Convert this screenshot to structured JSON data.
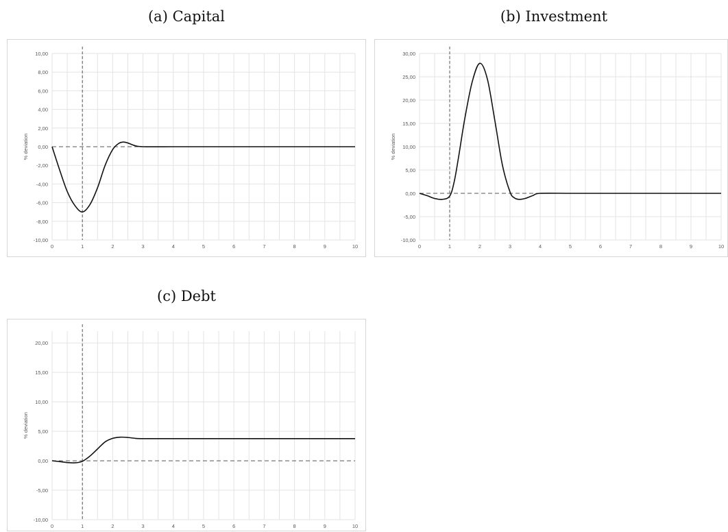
{
  "chart_data": [
    {
      "type": "line",
      "title": "(a) Capital",
      "ylabel": "% deviation",
      "xlabel": "",
      "xlim": [
        0,
        10
      ],
      "ylim": [
        -10,
        10
      ],
      "xticks": [
        0,
        1,
        2,
        3,
        4,
        5,
        6,
        7,
        8,
        9,
        10
      ],
      "yticks": [
        "10,00",
        "8,00",
        "6,00",
        "4,00",
        "2,00",
        "0,00",
        "-2,00",
        "-4,00",
        "-6,00",
        "-8,00",
        "-10,00"
      ],
      "ytick_values": [
        10,
        8,
        6,
        4,
        2,
        0,
        -2,
        -4,
        -6,
        -8,
        -10
      ],
      "grid": true,
      "shock_x": 1,
      "series": [
        {
          "x": [
            0,
            0.25,
            0.5,
            0.75,
            1.0,
            1.25,
            1.5,
            1.75,
            2.0,
            2.2,
            2.35,
            2.5,
            2.75,
            3.0,
            4,
            5,
            6,
            7,
            8,
            9,
            10
          ],
          "y": [
            0,
            -2.5,
            -4.8,
            -6.3,
            -7.0,
            -6.2,
            -4.4,
            -2.0,
            -0.3,
            0.35,
            0.5,
            0.4,
            0.1,
            0,
            0,
            0,
            0,
            0,
            0,
            0,
            0
          ]
        }
      ]
    },
    {
      "type": "line",
      "title": "(b) Investment",
      "ylabel": "% deviation",
      "xlabel": "",
      "xlim": [
        0,
        10
      ],
      "ylim": [
        -10,
        30
      ],
      "xticks": [
        0,
        1,
        2,
        3,
        4,
        5,
        6,
        7,
        8,
        9,
        10
      ],
      "yticks": [
        "30,00",
        "25,00",
        "20,00",
        "15,00",
        "10,00",
        "5,00",
        "0,00",
        "-5,00",
        "-10,00"
      ],
      "ytick_values": [
        30,
        25,
        20,
        15,
        10,
        5,
        0,
        -5,
        -10
      ],
      "grid": true,
      "shock_x": 1,
      "series": [
        {
          "x": [
            0,
            0.25,
            0.5,
            0.75,
            1.0,
            1.15,
            1.3,
            1.5,
            1.75,
            2.0,
            2.25,
            2.5,
            2.75,
            3.0,
            3.15,
            3.3,
            3.5,
            3.75,
            4.0,
            5,
            6,
            7,
            8,
            9,
            10
          ],
          "y": [
            0,
            -0.5,
            -1.1,
            -1.3,
            -0.6,
            2.5,
            8.0,
            16.0,
            24.0,
            27.9,
            24.5,
            15.5,
            6.0,
            0.3,
            -1.0,
            -1.3,
            -1.1,
            -0.5,
            0,
            0,
            0,
            0,
            0,
            0,
            0
          ]
        }
      ]
    },
    {
      "type": "line",
      "title": "(c) Debt",
      "ylabel": "% deviation",
      "xlabel": "",
      "xlim": [
        0,
        10
      ],
      "ylim": [
        -10,
        22
      ],
      "xticks": [
        0,
        1,
        2,
        3,
        4,
        5,
        6,
        7,
        8,
        9,
        10
      ],
      "yticks": [
        "20,00",
        "15,00",
        "10,00",
        "5,00",
        "0,00",
        "-5,00",
        "-10,00"
      ],
      "ytick_values": [
        20,
        15,
        10,
        5,
        0,
        -5,
        -10
      ],
      "grid": true,
      "shock_x": 1,
      "series": [
        {
          "x": [
            0,
            0.25,
            0.5,
            0.75,
            1.0,
            1.25,
            1.5,
            1.75,
            2.0,
            2.25,
            2.5,
            2.75,
            3.0,
            4,
            5,
            6,
            7,
            8,
            9,
            10
          ],
          "y": [
            0,
            -0.15,
            -0.3,
            -0.35,
            -0.1,
            0.8,
            2.0,
            3.2,
            3.8,
            4.0,
            3.95,
            3.8,
            3.75,
            3.75,
            3.75,
            3.75,
            3.75,
            3.75,
            3.75,
            3.75
          ]
        }
      ]
    }
  ]
}
